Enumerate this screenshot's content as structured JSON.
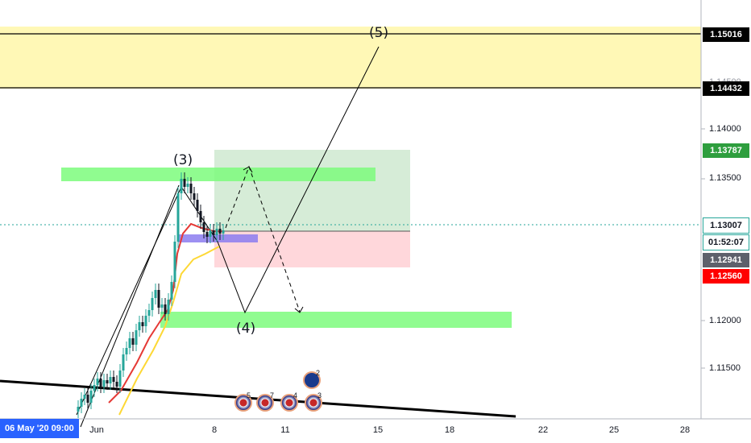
{
  "instrument_view": {
    "date_badge": "06 May '20  09:00",
    "x_ticks": [
      "Jun",
      "8",
      "11",
      "15",
      "18",
      "22",
      "25",
      "28"
    ],
    "price_ticks": [
      "1.14000",
      "1.13500",
      "1.12000",
      "1.11500"
    ],
    "hidden_tick": "1.14500",
    "price_tags": {
      "upper_zone": "1.15016",
      "lower_zone": "1.14432",
      "target": "1.13787",
      "current": "1.13007",
      "countdown": "01:52:07",
      "last": "1.12941",
      "stop": "1.12560"
    },
    "wave_labels": {
      "w3": "(3)",
      "w4": "(4)",
      "w5": "(5)"
    },
    "events": {
      "e1": "5",
      "e2": "7",
      "e3": "4",
      "e4": "3",
      "e5": "2"
    },
    "colors": {
      "up_candle": "#26a69a",
      "down_candle": "#131722",
      "zone_yellow": "#fff59d",
      "zone_green": "#7cfc7c",
      "target_green": "#c8e6c9",
      "stop_red": "#ffcdd2",
      "ma_fast": "#e53935",
      "ma_slow": "#fdd835",
      "badge_blue": "#2962ff"
    }
  }
}
